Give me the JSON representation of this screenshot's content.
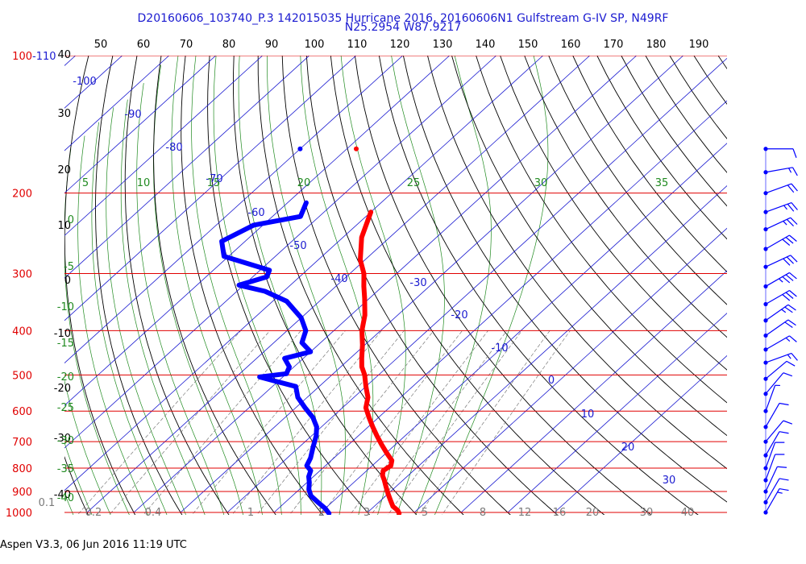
{
  "header": {
    "title": "D20160606_103740_P.3 142015035 Hurricane 2016, 20160606N1 Gulfstream G-IV SP, N49RF",
    "subtitle": "N25.2954 W87.9217"
  },
  "footer": {
    "text": "Aspen V3.3, 06 Jun 2016  11:19 UTC"
  },
  "colors": {
    "isobar": "#e00000",
    "isotherm": "#1a1ad0",
    "dry_adiabat": "#000000",
    "moist_adiabat": "#1f8a1f",
    "mixing_ratio": "#7a7a7a",
    "temperature": "#ff0000",
    "dewpoint": "#0000ff"
  },
  "chart_data": {
    "type": "line",
    "chart_kind": "skew-T log-P sounding",
    "pressure_labels": [
      "100",
      "200",
      "300",
      "400",
      "500",
      "600",
      "700",
      "800",
      "900",
      "1000"
    ],
    "pressure_levels": [
      100,
      200,
      300,
      400,
      500,
      600,
      700,
      800,
      900,
      1000
    ],
    "altitude_labels": [
      "40",
      "30",
      "20",
      "10",
      "0",
      "-10",
      "-20",
      "-30",
      "-40"
    ],
    "top_axis_labels": [
      "-110",
      "50",
      "60",
      "70",
      "80",
      "90",
      "100",
      "110",
      "120",
      "130",
      "140",
      "150",
      "160",
      "170",
      "180",
      "190"
    ],
    "isotherm_labels": [
      {
        "t": -100,
        "label": "-100"
      },
      {
        "t": -90,
        "label": "-90"
      },
      {
        "t": -80,
        "label": "-80"
      },
      {
        "t": -70,
        "label": "-70"
      },
      {
        "t": -60,
        "label": "-60"
      },
      {
        "t": -50,
        "label": "-50"
      },
      {
        "t": -40,
        "label": "-40"
      },
      {
        "t": -30,
        "label": "-30"
      },
      {
        "t": -20,
        "label": "-20"
      },
      {
        "t": -10,
        "label": "-10"
      },
      {
        "t": 0,
        "label": "0"
      },
      {
        "t": 10,
        "label": "10"
      },
      {
        "t": 20,
        "label": "20"
      },
      {
        "t": 30,
        "label": "30"
      }
    ],
    "moist_top_labels": [
      "5",
      "10",
      "15",
      "20",
      "25",
      "30",
      "35"
    ],
    "moist_left_labels": [
      "0",
      "-5",
      "-10",
      "-15",
      "-20",
      "-25",
      "-30",
      "-35",
      "-40"
    ],
    "mixing_ratio_labels": [
      "0.1",
      "0.2",
      "0.4",
      "1",
      "2",
      "3",
      "5",
      "8",
      "12",
      "16",
      "20",
      "30",
      "40"
    ],
    "series": [
      {
        "name": "temperature",
        "points": [
          [
            220,
            -50
          ],
          [
            250,
            -46
          ],
          [
            280,
            -41
          ],
          [
            300,
            -37
          ],
          [
            320,
            -34
          ],
          [
            340,
            -31
          ],
          [
            370,
            -27
          ],
          [
            400,
            -24
          ],
          [
            430,
            -20.5
          ],
          [
            460,
            -17.5
          ],
          [
            480,
            -15.5
          ],
          [
            500,
            -13
          ],
          [
            530,
            -10
          ],
          [
            560,
            -7
          ],
          [
            590,
            -5
          ],
          [
            620,
            -2
          ],
          [
            650,
            1
          ],
          [
            680,
            4
          ],
          [
            710,
            7
          ],
          [
            740,
            10
          ],
          [
            770,
            13
          ],
          [
            790,
            14
          ],
          [
            810,
            13.5
          ],
          [
            830,
            14.5
          ],
          [
            850,
            16
          ],
          [
            880,
            18
          ],
          [
            910,
            20
          ],
          [
            940,
            22
          ],
          [
            970,
            24
          ],
          [
            990,
            26
          ],
          [
            1005,
            27
          ]
        ]
      },
      {
        "name": "dewpoint",
        "points": [
          [
            210,
            -66
          ],
          [
            225,
            -64
          ],
          [
            235,
            -72
          ],
          [
            255,
            -75
          ],
          [
            275,
            -71
          ],
          [
            295,
            -58
          ],
          [
            305,
            -57
          ],
          [
            318,
            -61
          ],
          [
            328,
            -54
          ],
          [
            345,
            -47
          ],
          [
            375,
            -40
          ],
          [
            400,
            -36
          ],
          [
            425,
            -34
          ],
          [
            445,
            -30
          ],
          [
            460,
            -34
          ],
          [
            480,
            -31
          ],
          [
            497,
            -30
          ],
          [
            505,
            -35
          ],
          [
            515,
            -31
          ],
          [
            530,
            -25
          ],
          [
            560,
            -22
          ],
          [
            590,
            -18
          ],
          [
            620,
            -14
          ],
          [
            650,
            -11
          ],
          [
            680,
            -9
          ],
          [
            720,
            -7
          ],
          [
            760,
            -5
          ],
          [
            790,
            -4
          ],
          [
            810,
            -2
          ],
          [
            835,
            -1
          ],
          [
            860,
            0.5
          ],
          [
            890,
            2
          ],
          [
            920,
            4
          ],
          [
            950,
            7
          ],
          [
            980,
            10
          ],
          [
            1005,
            12
          ]
        ]
      }
    ],
    "upper_points": [
      {
        "series": "dewpoint",
        "p": 160,
        "t": -80
      },
      {
        "series": "temperature",
        "p": 160,
        "t": -68
      }
    ],
    "wind_barbs": [
      {
        "p": 160,
        "dir": 270,
        "spd": 10
      },
      {
        "p": 180,
        "dir": 260,
        "spd": 15
      },
      {
        "p": 200,
        "dir": 250,
        "spd": 20
      },
      {
        "p": 220,
        "dir": 250,
        "spd": 25
      },
      {
        "p": 240,
        "dir": 245,
        "spd": 25
      },
      {
        "p": 265,
        "dir": 240,
        "spd": 30
      },
      {
        "p": 290,
        "dir": 245,
        "spd": 30
      },
      {
        "p": 320,
        "dir": 240,
        "spd": 35
      },
      {
        "p": 350,
        "dir": 240,
        "spd": 30
      },
      {
        "p": 380,
        "dir": 235,
        "spd": 25
      },
      {
        "p": 410,
        "dir": 235,
        "spd": 20
      },
      {
        "p": 440,
        "dir": 240,
        "spd": 15
      },
      {
        "p": 470,
        "dir": 250,
        "spd": 15
      },
      {
        "p": 510,
        "dir": 230,
        "spd": 10
      },
      {
        "p": 550,
        "dir": 220,
        "spd": 10
      },
      {
        "p": 600,
        "dir": 200,
        "spd": 5
      },
      {
        "p": 650,
        "dir": 210,
        "spd": 10
      },
      {
        "p": 700,
        "dir": 220,
        "spd": 10
      },
      {
        "p": 750,
        "dir": 210,
        "spd": 10
      },
      {
        "p": 800,
        "dir": 200,
        "spd": 10
      },
      {
        "p": 850,
        "dir": 200,
        "spd": 10
      },
      {
        "p": 900,
        "dir": 205,
        "spd": 10
      },
      {
        "p": 950,
        "dir": 210,
        "spd": 10
      },
      {
        "p": 1000,
        "dir": 210,
        "spd": 15
      }
    ]
  }
}
